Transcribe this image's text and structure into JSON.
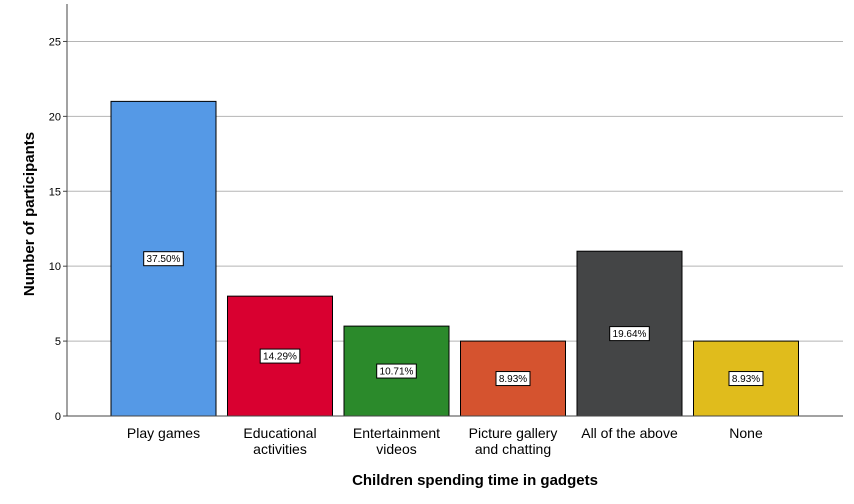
{
  "chart_data": {
    "type": "bar",
    "categories": [
      [
        "Play games"
      ],
      [
        "Educational",
        "activities"
      ],
      [
        "Entertainment",
        "videos"
      ],
      [
        "Picture gallery",
        "and chatting"
      ],
      [
        "All of the above"
      ],
      [
        "None"
      ]
    ],
    "values": [
      21,
      8,
      6,
      5,
      11,
      5
    ],
    "data_labels": [
      "37.50%",
      "14.29%",
      "10.71%",
      "8.93%",
      "19.64%",
      "8.93%"
    ],
    "colors": [
      "#5599e6",
      "#d90030",
      "#2b8a2b",
      "#d5532f",
      "#444546",
      "#e0bc1c"
    ],
    "xlabel": "Children spending time in gadgets",
    "ylabel": "Number of participants",
    "ylim": [
      0,
      27.5
    ],
    "yticks": [
      0,
      5,
      10,
      15,
      20,
      25
    ],
    "grid": true
  }
}
